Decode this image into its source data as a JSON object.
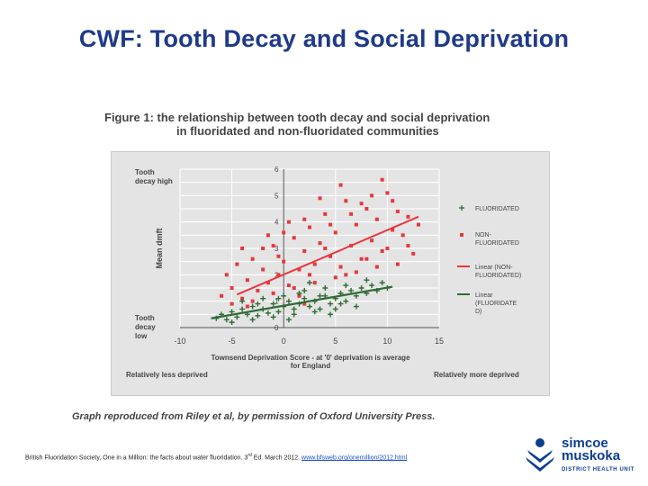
{
  "slide": {
    "title": "CWF: Tooth Decay and Social Deprivation"
  },
  "figure": {
    "title_line1": "Figure 1: the relationship between tooth decay and social deprivation",
    "title_line2": "in fluoridated and non-fluoridated communities"
  },
  "caption": "Graph reproduced from Riley et al, by permission of Oxford University Press.",
  "footer": {
    "source_prefix": "British Fluoridation Society, One in a Million: the facts about water fluoridation. 3",
    "source_sup": "rd",
    "source_suffix": " Ed. March 2012. ",
    "source_link": "www.bfsweb.org/onemillion/2012.html"
  },
  "logo": {
    "line1": "simcoe",
    "line2": "muskoka",
    "line3": "DISTRICT HEALTH UNIT"
  },
  "colors": {
    "non_fluoridated": "#e8373c",
    "fluoridated": "#2f6b35",
    "plot_bg": "#e4e4e4",
    "grid": "#ffffff",
    "title": "#1f3a8a"
  },
  "chart_data": {
    "type": "scatter",
    "xlabel": "Townsend Deprivation Score - at '0' deprivation is average for England",
    "ylabel": "Mean dmft",
    "xlim": [
      -10,
      15
    ],
    "ylim": [
      0,
      6
    ],
    "x_ticks": [
      "-10",
      "-5",
      "0",
      "5",
      "10",
      "15"
    ],
    "y_ticks": [
      "0",
      "1",
      "2",
      "3",
      "4",
      "5",
      "6"
    ],
    "grid": true,
    "legend_position": "right",
    "annotations": {
      "y_top": "Tooth decay high",
      "y_bottom": "Tooth decay low",
      "x_left": "Relatively less deprived",
      "x_right": "Relatively more deprived"
    },
    "series": [
      {
        "name": "FLUORIDATED",
        "marker": "plus",
        "points": [
          [
            -6.5,
            0.35
          ],
          [
            -6,
            0.5
          ],
          [
            -5.5,
            0.3
          ],
          [
            -5,
            0.6
          ],
          [
            -4.5,
            0.4
          ],
          [
            -4,
            0.7
          ],
          [
            -3.5,
            0.5
          ],
          [
            -3,
            0.8
          ],
          [
            -2.5,
            0.45
          ],
          [
            -2,
            0.7
          ],
          [
            -1.5,
            0.55
          ],
          [
            -1,
            0.9
          ],
          [
            -0.5,
            0.6
          ],
          [
            0,
            0.8
          ],
          [
            0.5,
            1.0
          ],
          [
            1,
            0.7
          ],
          [
            1.5,
            0.9
          ],
          [
            2,
            1.1
          ],
          [
            2.5,
            0.8
          ],
          [
            3,
            1.0
          ],
          [
            3.5,
            0.7
          ],
          [
            4,
            1.2
          ],
          [
            4.5,
            0.9
          ],
          [
            5,
            1.1
          ],
          [
            5.5,
            1.3
          ],
          [
            6,
            1.0
          ],
          [
            6.5,
            1.4
          ],
          [
            7,
            1.2
          ],
          [
            7.5,
            1.5
          ],
          [
            8,
            1.3
          ],
          [
            8.5,
            1.6
          ],
          [
            9,
            1.4
          ],
          [
            9.5,
            1.7
          ],
          [
            10,
            1.5
          ],
          [
            -5,
            0.2
          ],
          [
            -3,
            0.3
          ],
          [
            -1,
            0.4
          ],
          [
            1,
            0.5
          ],
          [
            3,
            0.6
          ],
          [
            5,
            0.7
          ],
          [
            -4,
            1.0
          ],
          [
            -2,
            1.1
          ],
          [
            0,
            1.2
          ],
          [
            2,
            1.4
          ],
          [
            4,
            1.5
          ],
          [
            6,
            1.6
          ],
          [
            8,
            1.8
          ],
          [
            7,
            0.8
          ],
          [
            2.5,
            1.7
          ],
          [
            -2.5,
            0.9
          ],
          [
            0.5,
            0.3
          ],
          [
            3.5,
            1.2
          ],
          [
            4.5,
            0.5
          ],
          [
            5.5,
            0.9
          ],
          [
            -0.5,
            1.1
          ],
          [
            1.5,
            1.3
          ]
        ],
        "trend": {
          "x": [
            -7,
            10.5
          ],
          "y": [
            0.35,
            1.55
          ]
        }
      },
      {
        "name": "NON-FLUORIDATED",
        "marker": "square",
        "points": [
          [
            -6,
            1.2
          ],
          [
            -5.5,
            2.0
          ],
          [
            -5,
            1.5
          ],
          [
            -4.5,
            2.4
          ],
          [
            -4,
            1.1
          ],
          [
            -3.5,
            1.8
          ],
          [
            -3,
            2.6
          ],
          [
            -2.5,
            1.4
          ],
          [
            -2,
            2.2
          ],
          [
            -1.5,
            1.7
          ],
          [
            -1,
            3.1
          ],
          [
            -0.5,
            2.0
          ],
          [
            0,
            2.5
          ],
          [
            0.5,
            1.6
          ],
          [
            1,
            3.4
          ],
          [
            1.5,
            2.2
          ],
          [
            2,
            2.9
          ],
          [
            2.5,
            3.8
          ],
          [
            3,
            2.4
          ],
          [
            3.5,
            3.2
          ],
          [
            4,
            4.3
          ],
          [
            4.5,
            2.7
          ],
          [
            5,
            3.6
          ],
          [
            5.5,
            2.3
          ],
          [
            6,
            4.8
          ],
          [
            6.5,
            3.1
          ],
          [
            7,
            3.9
          ],
          [
            7.5,
            2.6
          ],
          [
            8,
            4.5
          ],
          [
            8.5,
            3.3
          ],
          [
            9,
            4.1
          ],
          [
            9.5,
            2.9
          ],
          [
            10,
            5.1
          ],
          [
            10.5,
            3.7
          ],
          [
            11,
            4.4
          ],
          [
            11.5,
            3.5
          ],
          [
            12,
            4.2
          ],
          [
            12.5,
            2.8
          ],
          [
            13,
            3.9
          ],
          [
            -5,
            0.9
          ],
          [
            -3,
            1.0
          ],
          [
            -1,
            1.3
          ],
          [
            1,
            1.5
          ],
          [
            3,
            1.7
          ],
          [
            5,
            1.9
          ],
          [
            7,
            2.1
          ],
          [
            9,
            2.3
          ],
          [
            -2,
            3.0
          ],
          [
            0,
            3.6
          ],
          [
            2,
            4.1
          ],
          [
            4,
            3.0
          ],
          [
            6,
            2.0
          ],
          [
            8,
            2.6
          ],
          [
            10,
            3.0
          ],
          [
            11,
            2.4
          ],
          [
            3.5,
            4.9
          ],
          [
            5.5,
            5.4
          ],
          [
            7.5,
            4.7
          ],
          [
            9.5,
            5.6
          ],
          [
            -0.5,
            2.7
          ],
          [
            1.5,
            1.2
          ],
          [
            2.5,
            2.0
          ],
          [
            4.5,
            3.9
          ],
          [
            6.5,
            4.3
          ],
          [
            8.5,
            5.0
          ],
          [
            -4,
            3.0
          ],
          [
            -1.5,
            3.5
          ],
          [
            0.5,
            4.0
          ],
          [
            2,
            0.9
          ],
          [
            12,
            3.1
          ],
          [
            -3.5,
            0.8
          ],
          [
            10.5,
            4.8
          ]
        ],
        "trend": {
          "x": [
            -4.5,
            13
          ],
          "y": [
            1.25,
            4.2
          ]
        }
      }
    ],
    "legend": [
      {
        "label": "FLUORIDATED",
        "kind": "plus",
        "series": 0
      },
      {
        "label": "NON-FLUORIDATED",
        "kind": "square",
        "series": 1
      },
      {
        "label": "Linear (NON-FLUORIDATED)",
        "kind": "line",
        "series": 1
      },
      {
        "label": "Linear (FLUORIDATED)",
        "kind": "line",
        "series": 0
      }
    ]
  }
}
